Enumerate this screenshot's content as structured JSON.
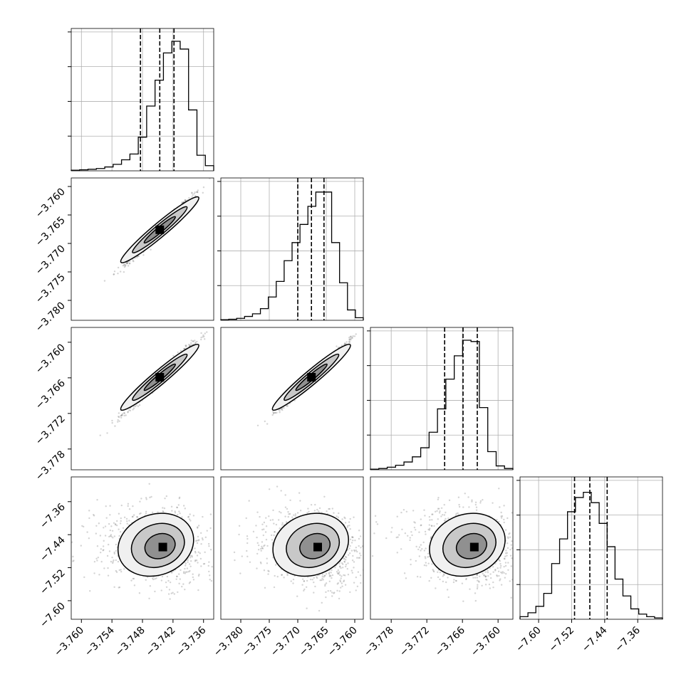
{
  "chart_data": {
    "type": "corner",
    "n_params": 4,
    "grid": true,
    "quantile_lines": "dashed",
    "params": [
      {
        "range": [
          -3.762,
          -3.734
        ],
        "ticks": [
          -3.76,
          -3.754,
          -3.748,
          -3.742,
          -3.736
        ],
        "tick_labels": [
          "−3.760",
          "−3.754",
          "−3.748",
          "−3.742",
          "−3.736"
        ],
        "quantiles": [
          -3.7484,
          -3.7446,
          -3.7418
        ],
        "hist": [
          0.005,
          0.008,
          0.012,
          0.018,
          0.03,
          0.05,
          0.085,
          0.13,
          0.26,
          0.5,
          0.7,
          0.91,
          1.0,
          0.94,
          0.47,
          0.12,
          0.04
        ]
      },
      {
        "range": [
          -3.7835,
          -3.7585
        ],
        "ticks": [
          -3.78,
          -3.775,
          -3.77,
          -3.765,
          -3.76
        ],
        "tick_labels": [
          "−3.780",
          "−3.775",
          "−3.770",
          "−3.765",
          "−3.760"
        ],
        "quantiles": [
          -3.77,
          -3.7676,
          -3.7654
        ],
        "hist": [
          0.005,
          0.008,
          0.015,
          0.03,
          0.05,
          0.09,
          0.18,
          0.3,
          0.46,
          0.6,
          0.74,
          0.88,
          0.99,
          0.99,
          0.6,
          0.29,
          0.08,
          0.02
        ]
      },
      {
        "range": [
          -3.7815,
          -3.7575
        ],
        "ticks": [
          -3.778,
          -3.772,
          -3.766,
          -3.76
        ],
        "tick_labels": [
          "−3.778",
          "−3.772",
          "−3.766",
          "−3.760"
        ],
        "quantiles": [
          -3.769,
          -3.7659,
          -3.7635
        ],
        "hist": [
          0.005,
          0.01,
          0.02,
          0.035,
          0.06,
          0.1,
          0.17,
          0.29,
          0.47,
          0.7,
          0.88,
          1.0,
          0.99,
          0.48,
          0.14,
          0.03,
          0.01
        ]
      },
      {
        "range": [
          -7.645,
          -7.3
        ],
        "ticks": [
          -7.6,
          -7.52,
          -7.44,
          -7.36
        ],
        "tick_labels": [
          "−7.60",
          "−7.52",
          "−7.44",
          "−7.36"
        ],
        "quantiles": [
          -7.513,
          -7.476,
          -7.434
        ],
        "hist": [
          0.02,
          0.05,
          0.1,
          0.2,
          0.43,
          0.62,
          0.83,
          0.94,
          0.98,
          0.9,
          0.74,
          0.56,
          0.31,
          0.18,
          0.08,
          0.04,
          0.02,
          0.01
        ]
      }
    ],
    "pairs": [
      {
        "x": 0,
        "y": 1,
        "mean": [
          -3.7446,
          -3.7676
        ],
        "corr": 0.985
      },
      {
        "x": 0,
        "y": 2,
        "mean": [
          -3.7446,
          -3.7659
        ],
        "corr": 0.985
      },
      {
        "x": 1,
        "y": 2,
        "mean": [
          -3.7676,
          -3.7659
        ],
        "corr": 0.99
      },
      {
        "x": 0,
        "y": 3,
        "mean": [
          -3.744,
          -7.47
        ],
        "corr": -0.15
      },
      {
        "x": 1,
        "y": 3,
        "mean": [
          -3.7665,
          -7.47
        ],
        "corr": -0.15
      },
      {
        "x": 2,
        "y": 3,
        "mean": [
          -3.764,
          -7.47
        ],
        "corr": -0.15
      }
    ]
  }
}
